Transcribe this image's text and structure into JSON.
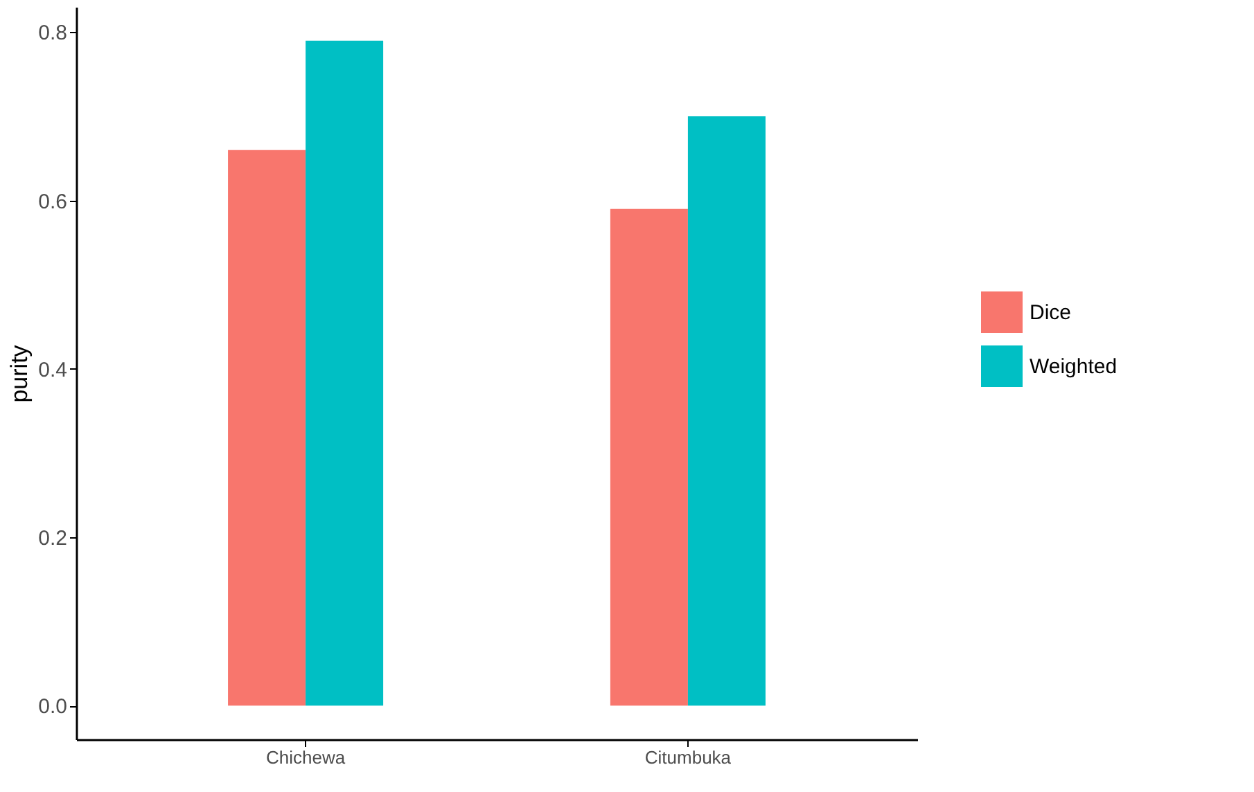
{
  "chart_data": {
    "type": "bar",
    "ylabel": "purity",
    "categories": [
      "Chichewa",
      "Citumbuka"
    ],
    "series": [
      {
        "name": "Dice",
        "color": "#f8766d",
        "values": [
          0.66,
          0.59
        ]
      },
      {
        "name": "Weighted",
        "color": "#00bfc4",
        "values": [
          0.79,
          0.7
        ]
      }
    ],
    "ylim": [
      -0.04,
      0.83
    ],
    "yticks": [
      {
        "value": 0,
        "label": "0.0"
      },
      0.2,
      0.4,
      0.6,
      0.8
    ],
    "grid": false,
    "legend": "right"
  }
}
